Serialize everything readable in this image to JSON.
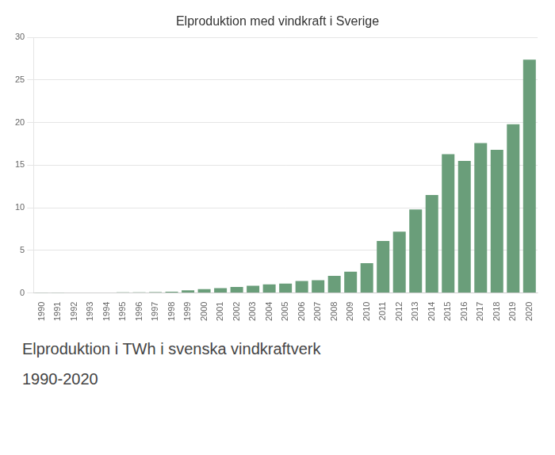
{
  "chart_data": {
    "type": "bar",
    "title": "Elproduktion med vindkraft i Sverige",
    "annotations": [
      "Elproduktion i TWh i svenska vindkraftverk",
      "1990-2020"
    ],
    "categories": [
      "1990",
      "1991",
      "1992",
      "1993",
      "1994",
      "1995",
      "1996",
      "1997",
      "1998",
      "1999",
      "2000",
      "2001",
      "2002",
      "2003",
      "2004",
      "2005",
      "2006",
      "2007",
      "2008",
      "2009",
      "2010",
      "2011",
      "2012",
      "2013",
      "2014",
      "2015",
      "2016",
      "2017",
      "2018",
      "2019",
      "2020"
    ],
    "values": [
      0.02,
      0.03,
      0.04,
      0.05,
      0.06,
      0.07,
      0.08,
      0.1,
      0.15,
      0.3,
      0.45,
      0.55,
      0.7,
      0.85,
      1.0,
      1.1,
      1.4,
      1.5,
      2.0,
      2.5,
      3.5,
      6.1,
      7.2,
      9.8,
      11.5,
      16.3,
      15.5,
      17.6,
      16.8,
      19.8,
      27.4
    ],
    "color": "#6a9e7a",
    "ylim": [
      0,
      30
    ],
    "yticks": [
      0,
      5,
      10,
      15,
      20,
      25,
      30
    ],
    "grid": true
  }
}
